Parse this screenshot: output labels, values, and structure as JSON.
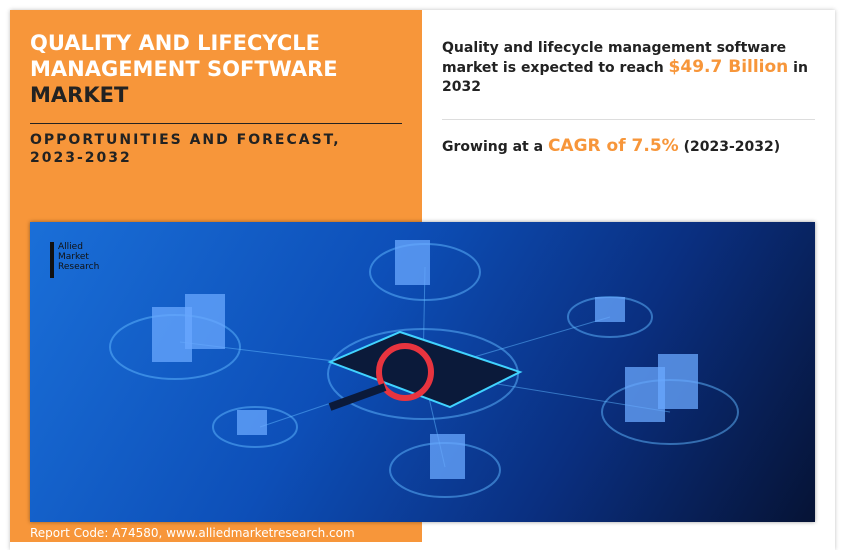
{
  "header": {
    "title_line1": "QUALITY AND LIFECYCLE MANAGEMENT SOFTWARE",
    "title_line2": "MARKET",
    "subtitle": "OPPORTUNITIES AND FORECAST, 2023-2032"
  },
  "stats": {
    "reach_prefix": "Quality and lifecycle management software market is expected to reach ",
    "reach_value": "$49.7 Billion",
    "reach_suffix": " in 2032",
    "cagr_prefix": "Growing at a ",
    "cagr_value": "CAGR of 7.5%",
    "cagr_suffix": " (2023-2032)"
  },
  "logo": {
    "line1": "Allied",
    "line2": "Market",
    "line3": "Research"
  },
  "footer": {
    "report_code": "Report Code: A74580, www.alliedmarketresearch.com"
  },
  "colors": {
    "accent": "#F7963A",
    "text": "#222222"
  }
}
